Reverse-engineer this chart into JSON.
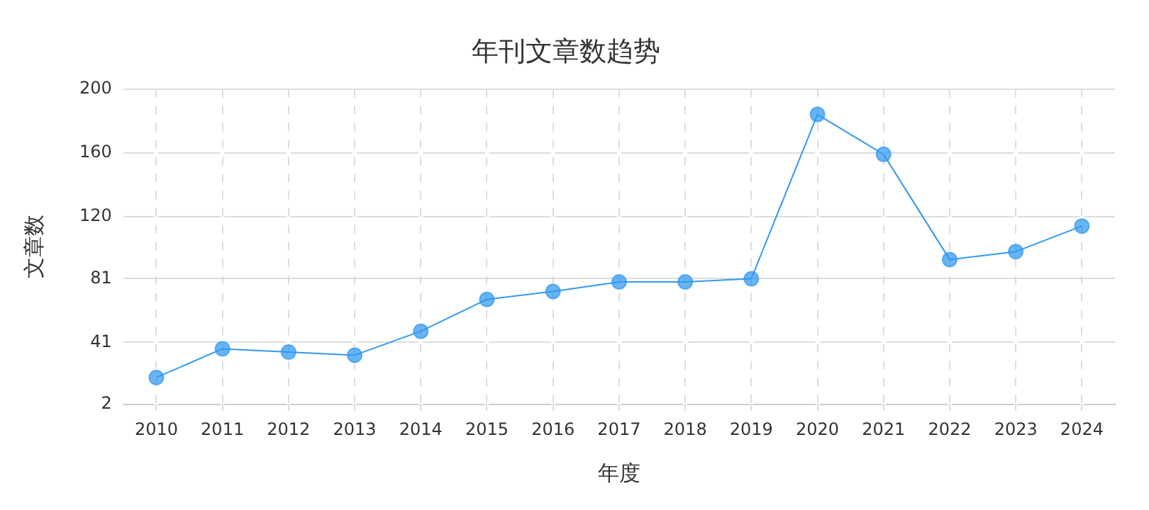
{
  "chart_data": {
    "type": "line",
    "title": "年刊文章数趋势",
    "xlabel": "年度",
    "ylabel": "文章数",
    "categories": [
      "2010",
      "2011",
      "2012",
      "2013",
      "2014",
      "2015",
      "2016",
      "2017",
      "2018",
      "2019",
      "2020",
      "2021",
      "2022",
      "2023",
      "2024"
    ],
    "series": [
      {
        "color": "#3399ee",
        "values": [
          19,
          37,
          35,
          33,
          48,
          68,
          73,
          79,
          79,
          81,
          184,
          159,
          93,
          98,
          114
        ]
      }
    ],
    "ylim": [
      2,
      200
    ],
    "yticks": [
      2,
      41,
      81,
      120,
      160,
      200
    ],
    "grid": true,
    "legend": false,
    "marker": "circle",
    "line_style": "solid"
  }
}
